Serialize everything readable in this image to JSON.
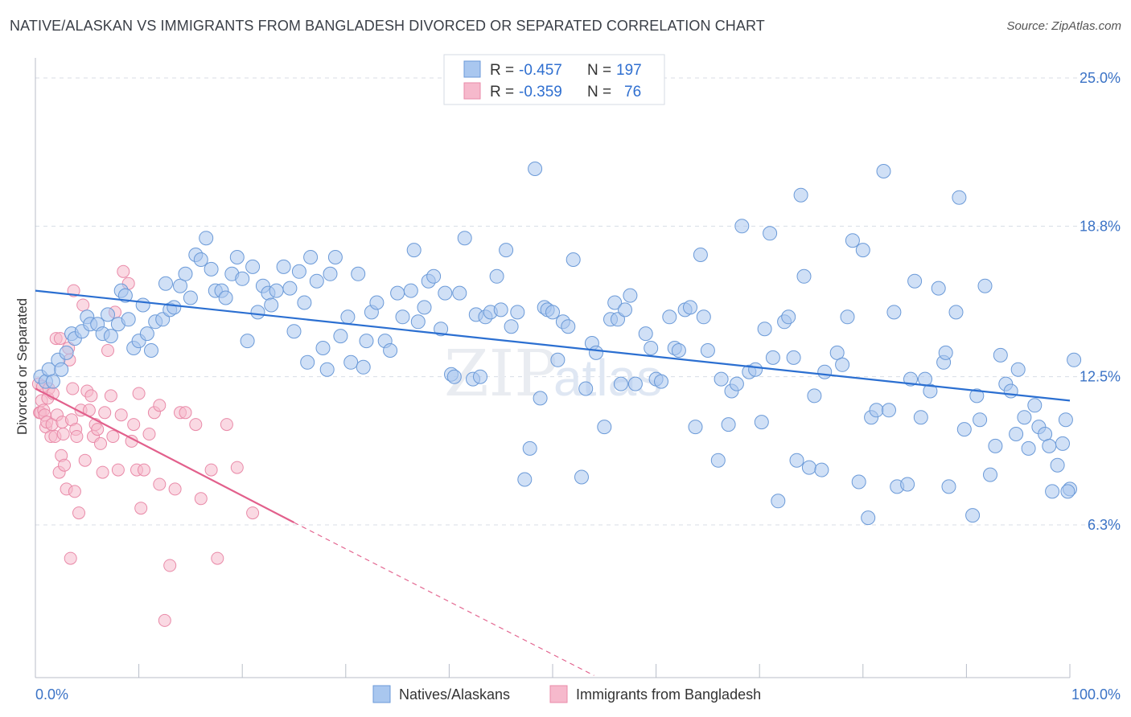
{
  "title": "NATIVE/ALASKAN VS IMMIGRANTS FROM BANGLADESH DIVORCED OR SEPARATED CORRELATION CHART",
  "source": "Source: ZipAtlas.com",
  "watermark": {
    "zip": "ZIP",
    "atlas": "atlas"
  },
  "colors": {
    "blue_fill": "#a9c7ef",
    "blue_stroke": "#6b9ad8",
    "blue_line": "#2b6fd1",
    "pink_fill": "#f6b9cc",
    "pink_stroke": "#e98aa8",
    "pink_line": "#e2608c",
    "grid": "#d8dde6",
    "tick_text": "#3b73c6"
  },
  "legend": {
    "rows": [
      {
        "r_label": "R =",
        "r_value": "-0.457",
        "n_label": "N =",
        "n_value": "197"
      },
      {
        "r_label": "R =",
        "r_value": "-0.359",
        "n_label": "N =",
        "n_value": "76"
      }
    ]
  },
  "chart_data": {
    "type": "scatter",
    "title": "NATIVE/ALASKAN VS IMMIGRANTS FROM BANGLADESH DIVORCED OR SEPARATED CORRELATION CHART",
    "xlabel": "",
    "ylabel": "Divorced or Separated",
    "xlim": [
      0,
      100
    ],
    "ylim": [
      0,
      26
    ],
    "x_tick_labels": [
      "0.0%",
      "100.0%"
    ],
    "y_ticks": [
      6.3,
      12.5,
      18.8,
      25.0
    ],
    "y_tick_labels": [
      "6.3%",
      "12.5%",
      "18.8%",
      "25.0%"
    ],
    "series": [
      {
        "name": "Natives/Alaskans",
        "color": "blue",
        "R": -0.457,
        "N": 197,
        "trend": {
          "x": [
            0,
            100
          ],
          "y": [
            16.1,
            11.5
          ],
          "dashed_to": null
        },
        "points": [
          [
            0.5,
            12.5
          ],
          [
            1.0,
            12.3
          ],
          [
            1.3,
            12.8
          ],
          [
            1.7,
            12.3
          ],
          [
            2.2,
            13.2
          ],
          [
            2.5,
            12.8
          ],
          [
            3.0,
            13.5
          ],
          [
            3.5,
            14.3
          ],
          [
            3.8,
            14.1
          ],
          [
            4.5,
            14.4
          ],
          [
            5.0,
            15.0
          ],
          [
            5.3,
            14.7
          ],
          [
            6.0,
            14.7
          ],
          [
            6.5,
            14.3
          ],
          [
            7.0,
            15.1
          ],
          [
            7.3,
            14.2
          ],
          [
            8.0,
            14.7
          ],
          [
            8.3,
            16.1
          ],
          [
            8.7,
            15.9
          ],
          [
            9.0,
            14.9
          ],
          [
            9.5,
            13.7
          ],
          [
            10.0,
            14.0
          ],
          [
            10.4,
            15.5
          ],
          [
            10.8,
            14.3
          ],
          [
            11.2,
            13.6
          ],
          [
            11.6,
            14.8
          ],
          [
            12.3,
            14.9
          ],
          [
            12.6,
            16.4
          ],
          [
            13.0,
            15.3
          ],
          [
            13.4,
            15.4
          ],
          [
            14.0,
            16.3
          ],
          [
            14.5,
            16.8
          ],
          [
            15.0,
            15.8
          ],
          [
            15.5,
            17.6
          ],
          [
            16.0,
            17.4
          ],
          [
            16.5,
            18.3
          ],
          [
            17.0,
            17.0
          ],
          [
            17.4,
            16.1
          ],
          [
            18.0,
            16.1
          ],
          [
            18.4,
            15.8
          ],
          [
            19.0,
            16.8
          ],
          [
            19.5,
            17.5
          ],
          [
            20.0,
            16.6
          ],
          [
            20.5,
            14.0
          ],
          [
            21.0,
            17.1
          ],
          [
            21.5,
            15.2
          ],
          [
            22.0,
            16.3
          ],
          [
            22.5,
            16.0
          ],
          [
            22.8,
            15.5
          ],
          [
            23.3,
            16.1
          ],
          [
            24.0,
            17.1
          ],
          [
            24.6,
            16.2
          ],
          [
            25.0,
            14.4
          ],
          [
            25.5,
            16.9
          ],
          [
            26.0,
            15.6
          ],
          [
            26.3,
            13.1
          ],
          [
            26.6,
            17.5
          ],
          [
            27.2,
            16.5
          ],
          [
            27.8,
            13.7
          ],
          [
            28.2,
            12.8
          ],
          [
            28.5,
            16.8
          ],
          [
            29.0,
            17.5
          ],
          [
            29.5,
            14.2
          ],
          [
            30.2,
            15.0
          ],
          [
            30.5,
            13.1
          ],
          [
            31.2,
            16.8
          ],
          [
            31.7,
            12.9
          ],
          [
            32.0,
            14.0
          ],
          [
            32.5,
            15.2
          ],
          [
            33.0,
            15.6
          ],
          [
            33.8,
            14.0
          ],
          [
            34.3,
            13.6
          ],
          [
            35.0,
            16.0
          ],
          [
            35.5,
            15.0
          ],
          [
            36.3,
            16.1
          ],
          [
            36.6,
            17.8
          ],
          [
            37.0,
            14.8
          ],
          [
            37.6,
            15.4
          ],
          [
            38.0,
            16.5
          ],
          [
            38.5,
            16.7
          ],
          [
            39.2,
            14.5
          ],
          [
            39.6,
            16.0
          ],
          [
            40.2,
            12.6
          ],
          [
            40.5,
            12.5
          ],
          [
            41.0,
            16.0
          ],
          [
            41.5,
            18.3
          ],
          [
            42.3,
            12.4
          ],
          [
            42.6,
            15.1
          ],
          [
            43.0,
            12.5
          ],
          [
            43.5,
            15.0
          ],
          [
            44.0,
            15.2
          ],
          [
            44.6,
            16.7
          ],
          [
            45.0,
            15.3
          ],
          [
            45.5,
            17.8
          ],
          [
            46.0,
            14.6
          ],
          [
            46.6,
            15.2
          ],
          [
            47.3,
            8.2
          ],
          [
            47.8,
            9.5
          ],
          [
            48.3,
            21.2
          ],
          [
            48.8,
            11.6
          ],
          [
            49.2,
            15.4
          ],
          [
            49.5,
            15.3
          ],
          [
            50.0,
            15.2
          ],
          [
            50.5,
            13.2
          ],
          [
            51.0,
            14.8
          ],
          [
            51.5,
            14.6
          ],
          [
            52.0,
            17.4
          ],
          [
            52.8,
            8.3
          ],
          [
            53.2,
            12.0
          ],
          [
            53.8,
            13.9
          ],
          [
            54.2,
            13.5
          ],
          [
            55.0,
            10.4
          ],
          [
            55.6,
            14.9
          ],
          [
            56.0,
            15.6
          ],
          [
            56.3,
            14.9
          ],
          [
            56.6,
            12.2
          ],
          [
            57.0,
            15.3
          ],
          [
            57.5,
            15.9
          ],
          [
            58.0,
            12.2
          ],
          [
            59.0,
            14.3
          ],
          [
            59.5,
            13.7
          ],
          [
            60.0,
            12.4
          ],
          [
            60.5,
            12.3
          ],
          [
            61.3,
            15.0
          ],
          [
            61.8,
            13.7
          ],
          [
            62.2,
            13.6
          ],
          [
            62.8,
            15.3
          ],
          [
            63.3,
            15.4
          ],
          [
            63.8,
            10.4
          ],
          [
            64.3,
            17.6
          ],
          [
            64.6,
            15.0
          ],
          [
            65.0,
            13.6
          ],
          [
            66.0,
            9.0
          ],
          [
            66.3,
            12.4
          ],
          [
            67.0,
            10.5
          ],
          [
            67.3,
            11.9
          ],
          [
            67.8,
            12.2
          ],
          [
            68.3,
            18.8
          ],
          [
            69.0,
            12.7
          ],
          [
            69.6,
            12.8
          ],
          [
            70.2,
            10.6
          ],
          [
            70.5,
            14.5
          ],
          [
            71.0,
            18.5
          ],
          [
            71.3,
            13.3
          ],
          [
            71.8,
            7.3
          ],
          [
            72.4,
            14.8
          ],
          [
            72.8,
            15.0
          ],
          [
            73.3,
            13.3
          ],
          [
            73.6,
            9.0
          ],
          [
            74.0,
            20.1
          ],
          [
            74.3,
            16.7
          ],
          [
            74.8,
            8.7
          ],
          [
            75.3,
            11.7
          ],
          [
            76.0,
            8.6
          ],
          [
            76.3,
            12.7
          ],
          [
            77.5,
            13.5
          ],
          [
            78.0,
            13.0
          ],
          [
            78.5,
            15.0
          ],
          [
            79.0,
            18.2
          ],
          [
            79.6,
            8.1
          ],
          [
            80.0,
            17.8
          ],
          [
            80.5,
            6.6
          ],
          [
            80.8,
            10.8
          ],
          [
            81.3,
            11.1
          ],
          [
            82.0,
            21.1
          ],
          [
            82.5,
            11.1
          ],
          [
            83.0,
            15.2
          ],
          [
            83.3,
            7.9
          ],
          [
            84.3,
            8.0
          ],
          [
            84.6,
            12.4
          ],
          [
            85.0,
            16.5
          ],
          [
            85.6,
            10.8
          ],
          [
            86.0,
            12.4
          ],
          [
            86.5,
            11.9
          ],
          [
            87.3,
            16.2
          ],
          [
            87.8,
            13.1
          ],
          [
            88.0,
            13.5
          ],
          [
            88.3,
            7.9
          ],
          [
            89.0,
            15.2
          ],
          [
            89.3,
            20.0
          ],
          [
            89.8,
            10.3
          ],
          [
            90.6,
            6.7
          ],
          [
            91.0,
            11.7
          ],
          [
            91.3,
            10.7
          ],
          [
            91.8,
            16.3
          ],
          [
            92.3,
            8.4
          ],
          [
            92.8,
            9.6
          ],
          [
            93.3,
            13.4
          ],
          [
            93.8,
            12.2
          ],
          [
            94.3,
            11.9
          ],
          [
            94.8,
            10.1
          ],
          [
            95.0,
            12.8
          ],
          [
            95.6,
            10.8
          ],
          [
            96.0,
            9.5
          ],
          [
            96.6,
            11.3
          ],
          [
            97.0,
            10.4
          ],
          [
            97.6,
            10.1
          ],
          [
            98.0,
            9.6
          ],
          [
            98.3,
            7.7
          ],
          [
            98.8,
            8.8
          ],
          [
            99.3,
            9.7
          ],
          [
            99.6,
            10.7
          ],
          [
            100.0,
            7.8
          ],
          [
            100.4,
            13.2
          ],
          [
            99.8,
            7.7
          ]
        ]
      },
      {
        "name": "Immigrants from Bangladesh",
        "color": "pink",
        "R": -0.359,
        "N": 76,
        "trend": {
          "x": [
            0,
            25.0
          ],
          "y": [
            12.0,
            6.4
          ],
          "dashed_to": [
            54,
            0.0
          ]
        },
        "points": [
          [
            0.3,
            12.2
          ],
          [
            0.4,
            11.0
          ],
          [
            0.5,
            11.0
          ],
          [
            0.6,
            11.5
          ],
          [
            0.7,
            12.1
          ],
          [
            0.8,
            11.1
          ],
          [
            0.9,
            10.9
          ],
          [
            1.0,
            10.4
          ],
          [
            1.1,
            10.6
          ],
          [
            1.2,
            11.6
          ],
          [
            1.3,
            12.0
          ],
          [
            1.5,
            10.0
          ],
          [
            1.6,
            10.5
          ],
          [
            1.7,
            11.8
          ],
          [
            1.9,
            10.0
          ],
          [
            2.0,
            14.1
          ],
          [
            2.1,
            10.9
          ],
          [
            2.3,
            8.5
          ],
          [
            2.4,
            14.1
          ],
          [
            2.5,
            9.2
          ],
          [
            2.6,
            10.6
          ],
          [
            2.7,
            10.1
          ],
          [
            2.8,
            8.8
          ],
          [
            3.0,
            7.8
          ],
          [
            3.2,
            13.7
          ],
          [
            3.3,
            13.2
          ],
          [
            3.4,
            4.9
          ],
          [
            3.5,
            10.7
          ],
          [
            3.6,
            12.0
          ],
          [
            3.7,
            16.1
          ],
          [
            3.8,
            7.7
          ],
          [
            3.9,
            10.3
          ],
          [
            4.0,
            10.0
          ],
          [
            4.2,
            6.8
          ],
          [
            4.4,
            11.1
          ],
          [
            4.6,
            15.5
          ],
          [
            4.8,
            9.0
          ],
          [
            5.0,
            11.9
          ],
          [
            5.2,
            11.1
          ],
          [
            5.4,
            11.7
          ],
          [
            5.6,
            10.0
          ],
          [
            5.8,
            10.5
          ],
          [
            6.0,
            10.3
          ],
          [
            6.3,
            9.7
          ],
          [
            6.5,
            8.5
          ],
          [
            6.7,
            11.0
          ],
          [
            7.0,
            13.6
          ],
          [
            7.3,
            11.7
          ],
          [
            7.5,
            10.0
          ],
          [
            7.7,
            15.2
          ],
          [
            8.0,
            8.6
          ],
          [
            8.3,
            10.9
          ],
          [
            8.5,
            16.9
          ],
          [
            9.0,
            16.4
          ],
          [
            9.3,
            9.8
          ],
          [
            9.5,
            10.5
          ],
          [
            9.8,
            8.6
          ],
          [
            10.0,
            11.8
          ],
          [
            10.2,
            7.0
          ],
          [
            10.5,
            8.6
          ],
          [
            11.0,
            10.1
          ],
          [
            11.5,
            11.0
          ],
          [
            12.0,
            8.0
          ],
          [
            12.5,
            2.3
          ],
          [
            13.0,
            4.6
          ],
          [
            13.5,
            7.8
          ],
          [
            14.0,
            11.0
          ],
          [
            14.5,
            11.0
          ],
          [
            15.5,
            10.5
          ],
          [
            16.0,
            7.4
          ],
          [
            17.0,
            8.6
          ],
          [
            17.6,
            4.9
          ],
          [
            18.5,
            10.5
          ],
          [
            19.5,
            8.7
          ],
          [
            21.0,
            6.8
          ],
          [
            12.0,
            11.3
          ]
        ]
      }
    ],
    "legend_position": "top-center",
    "bottom_legend": [
      "Natives/Alaskans",
      "Immigrants from Bangladesh"
    ]
  }
}
